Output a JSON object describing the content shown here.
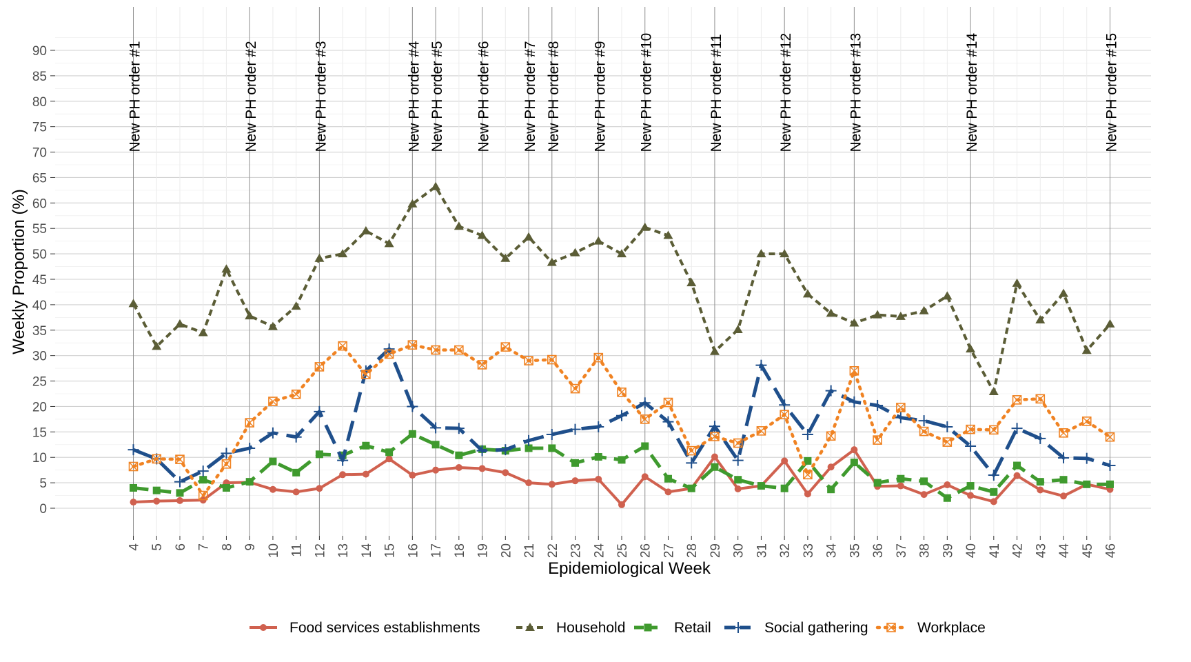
{
  "chart_data": {
    "type": "line",
    "title": "",
    "xlabel": "Epidemiological Week",
    "ylabel": "Weekly Proportion (%)",
    "ylim": [
      -5,
      95
    ],
    "yticks": [
      0,
      5,
      10,
      15,
      20,
      25,
      30,
      35,
      40,
      45,
      50,
      55,
      60,
      65,
      70,
      75,
      80,
      85,
      90
    ],
    "x": [
      4,
      5,
      6,
      7,
      8,
      9,
      10,
      11,
      12,
      13,
      14,
      15,
      16,
      17,
      18,
      19,
      20,
      21,
      22,
      23,
      24,
      25,
      26,
      27,
      28,
      29,
      30,
      31,
      32,
      33,
      34,
      35,
      36,
      37,
      38,
      39,
      40,
      41,
      42,
      43,
      44,
      45,
      46
    ],
    "grid": true,
    "legend_position": "bottom",
    "annotation_weeks": [
      4,
      9,
      12,
      16,
      17,
      19,
      21,
      22,
      24,
      26,
      29,
      32,
      35,
      40,
      46
    ],
    "annotations": [
      "New PH order #1",
      "New PH order #2",
      "New PH order #3",
      "New PH order #4",
      "New PH order #5",
      "New PH order #6",
      "New PH order #7",
      "New PH order #8",
      "New PH order #9",
      "New PH order #10",
      "New PH order #11",
      "New PH order #12",
      "New PH order #13",
      "New PH order #14",
      "New PH order #15"
    ],
    "series": [
      {
        "name": "Food services establishments",
        "color": "#d0614f",
        "dash": "solid",
        "marker": "circle",
        "values": [
          1.2,
          1.4,
          1.5,
          1.6,
          5.0,
          5.1,
          3.7,
          3.2,
          3.9,
          6.6,
          6.7,
          9.7,
          6.5,
          7.5,
          8.0,
          7.8,
          7.0,
          5.0,
          4.7,
          5.4,
          5.7,
          0.7,
          6.2,
          3.2,
          3.9,
          10.1,
          3.8,
          4.4,
          9.3,
          2.8,
          8.1,
          11.5,
          4.3,
          4.4,
          2.7,
          4.6,
          2.5,
          1.3,
          6.4,
          3.6,
          2.4,
          4.7,
          3.7
        ]
      },
      {
        "name": "Household",
        "color": "#5b5d36",
        "dash": "short",
        "marker": "triangle",
        "values": [
          40.2,
          31.8,
          36.2,
          34.5,
          47.0,
          37.8,
          35.7,
          39.7,
          49.1,
          50.0,
          54.5,
          52.0,
          59.8,
          63.2,
          55.4,
          53.6,
          49.1,
          53.3,
          48.3,
          50.2,
          52.5,
          50.0,
          55.2,
          53.6,
          44.3,
          30.8,
          35.1,
          50.0,
          50.0,
          42.1,
          38.3,
          36.4,
          38.0,
          37.7,
          38.8,
          41.7,
          31.3,
          22.9,
          44.2,
          37.0,
          42.2,
          31.0,
          36.2
        ]
      },
      {
        "name": "Retail",
        "color": "#3f9a2e",
        "dash": "long",
        "marker": "square",
        "values": [
          4.0,
          3.5,
          3.0,
          5.6,
          4.0,
          5.2,
          9.2,
          7.0,
          10.6,
          10.4,
          12.3,
          11.0,
          14.6,
          12.5,
          10.4,
          11.6,
          11.3,
          11.8,
          11.8,
          8.9,
          10.1,
          9.5,
          12.2,
          5.8,
          3.9,
          8.1,
          5.6,
          4.4,
          3.9,
          9.3,
          3.7,
          9.0,
          5.0,
          5.8,
          5.3,
          2.0,
          4.4,
          3.2,
          8.4,
          5.2,
          5.6,
          4.7,
          4.7
        ]
      },
      {
        "name": "Social gathering",
        "color": "#1f4f8b",
        "dash": "longer",
        "marker": "plus",
        "values": [
          11.5,
          9.7,
          5.2,
          7.3,
          10.8,
          11.8,
          14.8,
          14.0,
          19.0,
          9.4,
          27.0,
          31.3,
          20.0,
          15.8,
          15.7,
          11.3,
          11.5,
          13.3,
          14.5,
          15.5,
          16.0,
          18.2,
          20.7,
          17.0,
          8.9,
          16.1,
          9.4,
          28.1,
          20.3,
          14.5,
          23.1,
          20.9,
          20.2,
          17.8,
          17.2,
          16.0,
          12.2,
          6.5,
          15.7,
          13.7,
          9.9,
          9.8,
          8.4
        ]
      },
      {
        "name": "Workplace",
        "color": "#f08323",
        "dash": "dotted",
        "marker": "boxed-x",
        "values": [
          8.2,
          9.7,
          9.6,
          2.5,
          8.7,
          16.8,
          21.0,
          22.4,
          27.8,
          31.9,
          26.3,
          30.3,
          32.1,
          31.1,
          31.1,
          28.2,
          31.7,
          29.0,
          29.2,
          23.5,
          29.6,
          22.8,
          17.5,
          20.8,
          11.3,
          14.1,
          12.8,
          15.2,
          18.4,
          6.6,
          14.2,
          27.0,
          13.4,
          19.8,
          15.1,
          13.0,
          15.5,
          15.4,
          21.3,
          21.5,
          14.8,
          17.1,
          14.0
        ]
      }
    ]
  }
}
